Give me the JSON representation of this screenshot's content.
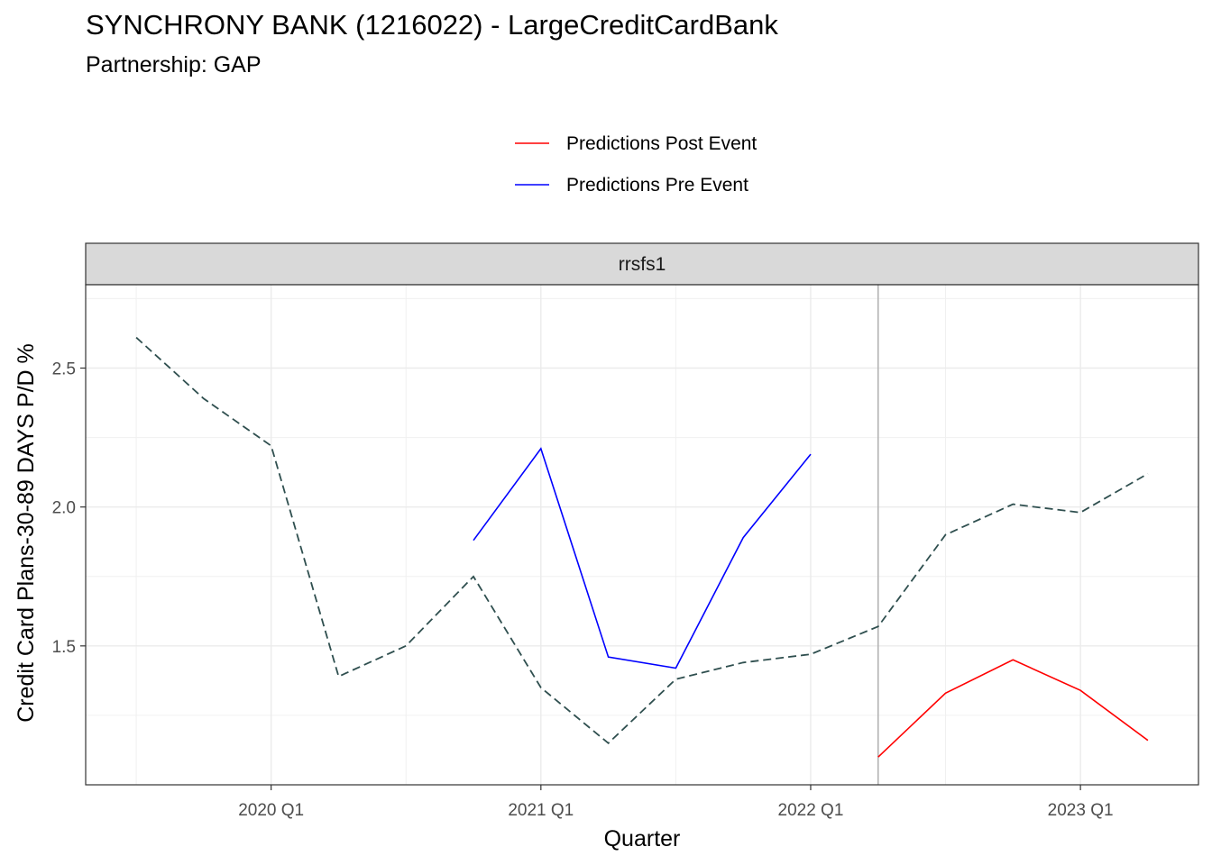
{
  "chart_data": {
    "type": "line",
    "title": "SYNCHRONY BANK (1216022) - LargeCreditCardBank",
    "subtitle": "Partnership: GAP",
    "facet_label": "rrsfs1",
    "xlabel": "Quarter",
    "ylabel": "Credit Card Plans-30-89 DAYS P/D %",
    "x_ticks": [
      "2020 Q1",
      "2021 Q1",
      "2022 Q1",
      "2023 Q1"
    ],
    "y_ticks": [
      1.5,
      2.0,
      2.5
    ],
    "ylim": [
      1.0,
      2.8
    ],
    "xlim": [
      "2019 Q3",
      "2023 Q2"
    ],
    "event_line_x": "2022 Q2",
    "grid": true,
    "legend_position": "top",
    "series": [
      {
        "kind": "actual",
        "style": "dashed",
        "color": "#2F4F4F",
        "x": [
          "2019 Q3",
          "2019 Q4",
          "2020 Q1",
          "2020 Q2",
          "2020 Q3",
          "2020 Q4",
          "2021 Q1",
          "2021 Q2",
          "2021 Q3",
          "2021 Q4",
          "2022 Q1",
          "2022 Q2",
          "2022 Q3",
          "2022 Q4",
          "2023 Q1",
          "2023 Q2"
        ],
        "values": [
          2.61,
          2.39,
          2.22,
          1.39,
          1.5,
          1.75,
          1.35,
          1.15,
          1.38,
          1.44,
          1.47,
          1.57,
          1.9,
          2.01,
          1.98,
          2.12
        ]
      },
      {
        "name": "Predictions Pre Event",
        "style": "solid",
        "color": "#0000FF",
        "x": [
          "2020 Q4",
          "2021 Q1",
          "2021 Q2",
          "2021 Q3",
          "2021 Q4",
          "2022 Q1"
        ],
        "values": [
          1.88,
          2.21,
          1.46,
          1.42,
          1.89,
          2.19
        ]
      },
      {
        "name": "Predictions Post Event",
        "style": "solid",
        "color": "#FF0000",
        "x": [
          "2022 Q2",
          "2022 Q3",
          "2022 Q4",
          "2023 Q1",
          "2023 Q2"
        ],
        "values": [
          1.1,
          1.33,
          1.45,
          1.34,
          1.16
        ]
      }
    ],
    "legend": [
      {
        "label": "Predictions Post Event",
        "color": "#FF0000"
      },
      {
        "label": "Predictions Pre Event",
        "color": "#0000FF"
      }
    ]
  }
}
